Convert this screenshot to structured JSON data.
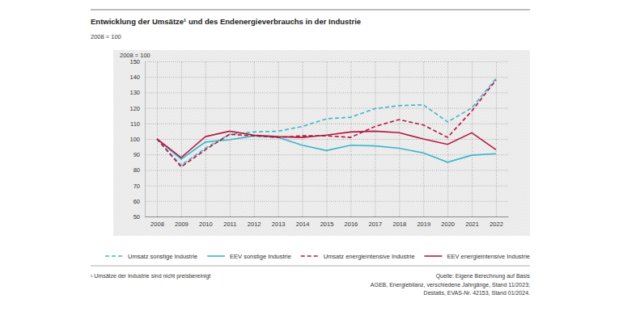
{
  "chart_data": {
    "type": "line",
    "title": "Entwicklung der Umsätze¹ und des Endenergieverbrauchs in der Industrie",
    "subtitle": "2008 = 100",
    "y_label": "2008 = 100",
    "x": [
      2008,
      2009,
      2010,
      2011,
      2012,
      2013,
      2014,
      2015,
      2016,
      2017,
      2018,
      2019,
      2020,
      2021,
      2022
    ],
    "xlim": [
      2007.5,
      2022.5
    ],
    "xticks": [
      2008,
      2009,
      2010,
      2011,
      2012,
      2013,
      2014,
      2015,
      2016,
      2017,
      2018,
      2019,
      2020,
      2021,
      2022
    ],
    "ylim": [
      50,
      150
    ],
    "yticks": [
      50,
      60,
      70,
      80,
      90,
      100,
      110,
      120,
      130,
      140,
      150
    ],
    "grid": true,
    "legend": "bottom",
    "series": [
      {
        "name": "Umsatz sonstige Industrie",
        "color": "#3bb6c9",
        "line_style": "dashed",
        "values": [
          100,
          83,
          94,
          103,
          104.5,
          105,
          108,
          113,
          114,
          119.5,
          121.5,
          122,
          111,
          120,
          139
        ]
      },
      {
        "name": "EEV sonstige Industrie",
        "color": "#3bb6c9",
        "line_style": "solid",
        "values": [
          100,
          87,
          98,
          99.5,
          102,
          101,
          96,
          92.5,
          96,
          95.5,
          94,
          91,
          85,
          89.5,
          90.5
        ]
      },
      {
        "name": "Umsatz energieintensive Industrie",
        "color": "#b5183f",
        "line_style": "dashed",
        "values": [
          100,
          82,
          93,
          103,
          102,
          101,
          102,
          102,
          101,
          108,
          112.5,
          109,
          101,
          118,
          138
        ]
      },
      {
        "name": "EEV energieintensive Industrie",
        "color": "#b5183f",
        "line_style": "solid",
        "values": [
          100,
          88,
          101.5,
          105,
          102.5,
          101.5,
          101,
          102.5,
          104.5,
          105,
          104,
          100,
          96.5,
          104,
          93
        ]
      }
    ],
    "footnote": "¹ Umsätze der Industrie sind nicht preisbereinigt",
    "source": [
      "Quelle: Eigene Berechnung auf Basis",
      "AGEB, Energiebilanz, verschiedene Jahrgänge, Stand 11/2023;",
      "Destatis, EVAS-Nr. 42153, Stand 01/2024."
    ]
  }
}
